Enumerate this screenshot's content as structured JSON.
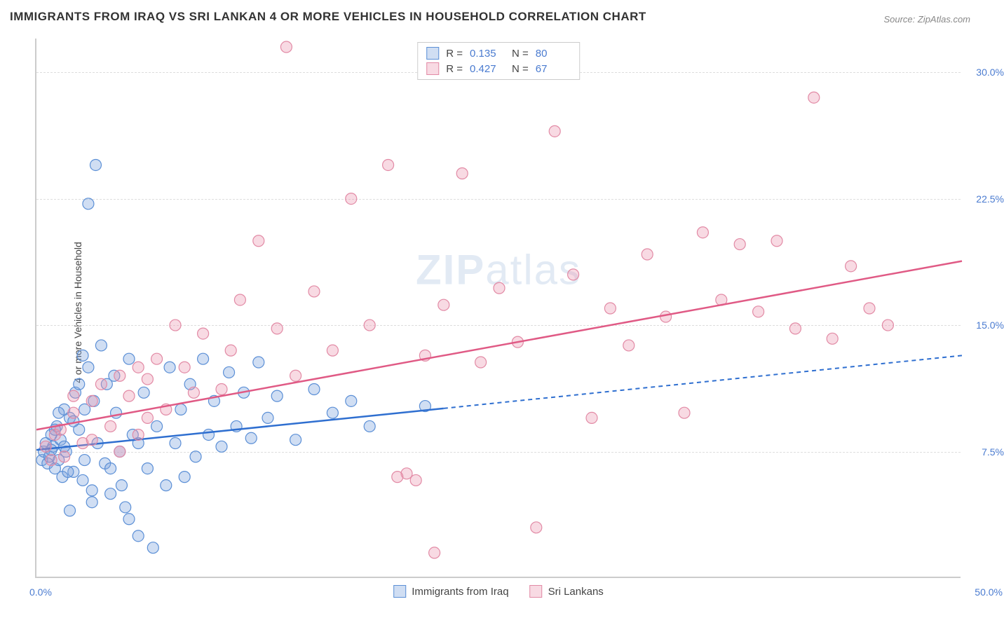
{
  "title": "IMMIGRANTS FROM IRAQ VS SRI LANKAN 4 OR MORE VEHICLES IN HOUSEHOLD CORRELATION CHART",
  "source": "Source: ZipAtlas.com",
  "ylabel": "4 or more Vehicles in Household",
  "watermark_zip": "ZIP",
  "watermark_atlas": "atlas",
  "chart": {
    "type": "scatter-with-regression",
    "background_color": "#ffffff",
    "grid_color": "#dddddd",
    "axis_color": "#cccccc",
    "tick_label_color": "#4a7bd0",
    "tick_fontsize": 14,
    "label_fontsize": 14,
    "xlim": [
      0,
      50
    ],
    "ylim": [
      0,
      32
    ],
    "yticks": [
      7.5,
      15.0,
      22.5,
      30.0
    ],
    "ytick_labels": [
      "7.5%",
      "15.0%",
      "22.5%",
      "30.0%"
    ],
    "xticks": [
      0,
      50
    ],
    "xtick_labels": [
      "0.0%",
      "50.0%"
    ],
    "marker_radius": 8,
    "marker_stroke_width": 1.2,
    "trend_line_width": 2.5,
    "series": [
      {
        "name": "Immigrants from Iraq",
        "fill_color": "rgba(120,160,220,0.35)",
        "stroke_color": "#5b8fd6",
        "trend_color": "#2f6fd0",
        "trend_dash_after_x": 22,
        "trend": {
          "x1": 0,
          "y1": 7.6,
          "x2": 50,
          "y2": 13.2
        },
        "R": 0.135,
        "N": 80,
        "points": [
          [
            0.3,
            7.0
          ],
          [
            0.4,
            7.5
          ],
          [
            0.5,
            8.0
          ],
          [
            0.6,
            6.8
          ],
          [
            0.7,
            7.2
          ],
          [
            0.8,
            8.5
          ],
          [
            0.9,
            7.8
          ],
          [
            1.0,
            6.5
          ],
          [
            1.1,
            9.0
          ],
          [
            1.2,
            7.0
          ],
          [
            1.3,
            8.2
          ],
          [
            1.4,
            6.0
          ],
          [
            1.5,
            10.0
          ],
          [
            1.6,
            7.5
          ],
          [
            1.8,
            9.5
          ],
          [
            2.0,
            6.3
          ],
          [
            2.1,
            11.0
          ],
          [
            2.3,
            8.8
          ],
          [
            2.5,
            13.2
          ],
          [
            2.6,
            7.0
          ],
          [
            2.8,
            12.5
          ],
          [
            3.0,
            5.2
          ],
          [
            3.1,
            10.5
          ],
          [
            3.3,
            8.0
          ],
          [
            3.5,
            13.8
          ],
          [
            3.7,
            6.8
          ],
          [
            3.8,
            11.5
          ],
          [
            4.0,
            5.0
          ],
          [
            4.2,
            12.0
          ],
          [
            4.5,
            7.5
          ],
          [
            4.8,
            4.2
          ],
          [
            5.0,
            13.0
          ],
          [
            5.2,
            8.5
          ],
          [
            5.5,
            2.5
          ],
          [
            5.8,
            11.0
          ],
          [
            6.0,
            6.5
          ],
          [
            6.3,
            1.8
          ],
          [
            6.5,
            9.0
          ],
          [
            7.0,
            5.5
          ],
          [
            7.2,
            12.5
          ],
          [
            7.5,
            8.0
          ],
          [
            7.8,
            10.0
          ],
          [
            8.0,
            6.0
          ],
          [
            8.3,
            11.5
          ],
          [
            8.6,
            7.2
          ],
          [
            9.0,
            13.0
          ],
          [
            9.3,
            8.5
          ],
          [
            9.6,
            10.5
          ],
          [
            10.0,
            7.8
          ],
          [
            10.4,
            12.2
          ],
          [
            10.8,
            9.0
          ],
          [
            11.2,
            11.0
          ],
          [
            11.6,
            8.3
          ],
          [
            12.0,
            12.8
          ],
          [
            12.5,
            9.5
          ],
          [
            13.0,
            10.8
          ],
          [
            14.0,
            8.2
          ],
          [
            15.0,
            11.2
          ],
          [
            16.0,
            9.8
          ],
          [
            17.0,
            10.5
          ],
          [
            18.0,
            9.0
          ],
          [
            21.0,
            10.2
          ],
          [
            3.2,
            24.5
          ],
          [
            2.8,
            22.2
          ],
          [
            0.8,
            7.6
          ],
          [
            1.0,
            8.8
          ],
          [
            1.2,
            9.8
          ],
          [
            1.5,
            7.8
          ],
          [
            1.7,
            6.3
          ],
          [
            2.0,
            9.3
          ],
          [
            2.3,
            11.5
          ],
          [
            4.0,
            6.5
          ],
          [
            4.3,
            9.8
          ],
          [
            4.6,
            5.5
          ],
          [
            5.0,
            3.5
          ],
          [
            5.5,
            8.0
          ],
          [
            2.5,
            5.8
          ],
          [
            3.0,
            4.5
          ],
          [
            1.8,
            4.0
          ],
          [
            2.6,
            10.0
          ]
        ]
      },
      {
        "name": "Sri Lankans",
        "fill_color": "rgba(235,150,175,0.35)",
        "stroke_color": "#e28aa5",
        "trend_color": "#e05a85",
        "trend_dash_after_x": 50,
        "trend": {
          "x1": 0,
          "y1": 8.8,
          "x2": 50,
          "y2": 18.8
        },
        "R": 0.427,
        "N": 67,
        "points": [
          [
            0.5,
            7.8
          ],
          [
            1.0,
            8.5
          ],
          [
            1.5,
            7.2
          ],
          [
            2.0,
            9.8
          ],
          [
            2.5,
            8.0
          ],
          [
            3.0,
            10.5
          ],
          [
            3.5,
            11.5
          ],
          [
            4.0,
            9.0
          ],
          [
            4.5,
            12.0
          ],
          [
            5.0,
            10.8
          ],
          [
            5.5,
            8.5
          ],
          [
            6.0,
            11.8
          ],
          [
            6.5,
            13.0
          ],
          [
            7.0,
            10.0
          ],
          [
            8.0,
            12.5
          ],
          [
            9.0,
            14.5
          ],
          [
            10.0,
            11.2
          ],
          [
            11.0,
            16.5
          ],
          [
            12.0,
            20.0
          ],
          [
            13.0,
            14.8
          ],
          [
            13.5,
            31.5
          ],
          [
            14.0,
            12.0
          ],
          [
            15.0,
            17.0
          ],
          [
            16.0,
            13.5
          ],
          [
            17.0,
            22.5
          ],
          [
            18.0,
            15.0
          ],
          [
            19.0,
            24.5
          ],
          [
            20.0,
            6.2
          ],
          [
            20.5,
            5.8
          ],
          [
            21.0,
            13.2
          ],
          [
            21.5,
            1.5
          ],
          [
            22.0,
            16.2
          ],
          [
            23.0,
            24.0
          ],
          [
            24.0,
            12.8
          ],
          [
            25.0,
            17.2
          ],
          [
            26.0,
            14.0
          ],
          [
            27.0,
            3.0
          ],
          [
            28.0,
            26.5
          ],
          [
            29.0,
            18.0
          ],
          [
            30.0,
            9.5
          ],
          [
            31.0,
            16.0
          ],
          [
            32.0,
            13.8
          ],
          [
            33.0,
            19.2
          ],
          [
            34.0,
            15.5
          ],
          [
            35.0,
            9.8
          ],
          [
            36.0,
            20.5
          ],
          [
            37.0,
            16.5
          ],
          [
            38.0,
            19.8
          ],
          [
            39.0,
            15.8
          ],
          [
            40.0,
            20.0
          ],
          [
            41.0,
            14.8
          ],
          [
            42.0,
            28.5
          ],
          [
            43.0,
            14.2
          ],
          [
            44.0,
            18.5
          ],
          [
            45.0,
            16.0
          ],
          [
            46.0,
            15.0
          ],
          [
            3.0,
            8.2
          ],
          [
            4.5,
            7.5
          ],
          [
            6.0,
            9.5
          ],
          [
            2.0,
            10.8
          ],
          [
            1.3,
            8.8
          ],
          [
            0.8,
            7.0
          ],
          [
            5.5,
            12.5
          ],
          [
            8.5,
            11.0
          ],
          [
            7.5,
            15.0
          ],
          [
            10.5,
            13.5
          ],
          [
            19.5,
            6.0
          ]
        ]
      }
    ]
  },
  "legend_top": {
    "r_label": "R =",
    "n_label": "N ="
  },
  "legend_bottom": {
    "series1": "Immigrants from Iraq",
    "series2": "Sri Lankans"
  }
}
